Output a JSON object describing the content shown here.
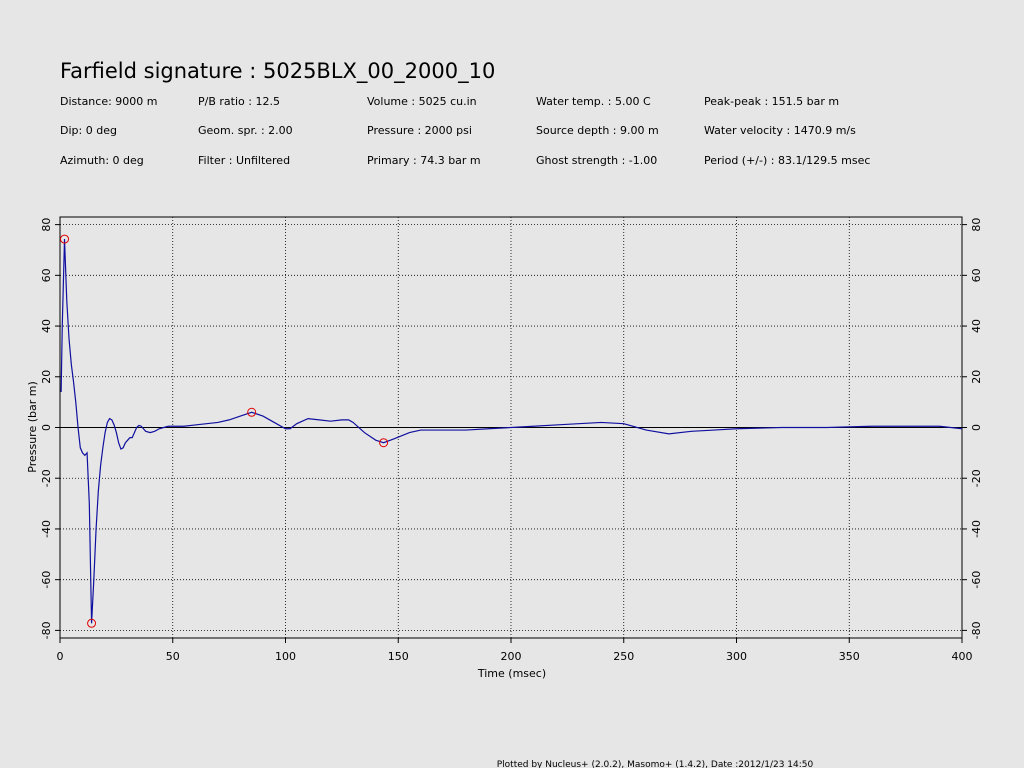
{
  "chart_data": {
    "type": "line",
    "title": "Farfield signature : 5025BLX_00_2000_10",
    "annotations": [
      "Distance: 9000 m",
      "P/B ratio : 12.5",
      "Volume : 5025 cu.in",
      "Water temp. : 5.00 C",
      "Peak-peak : 151.5 bar m",
      "Dip: 0 deg",
      "Geom. spr. : 2.00",
      "Pressure : 2000 psi",
      "Source depth : 9.00 m",
      "Water velocity : 1470.9 m/s",
      "Azimuth: 0 deg",
      "Filter : Unfiltered",
      "Primary : 74.3 bar m",
      "Ghost strength : -1.00",
      "Period (+/-) : 83.1/129.5 msec"
    ],
    "x_label": "Time (msec)",
    "y_label": "Pressure (bar m)",
    "footnote": "Plotted by Nucleus+ (2.0.2), Masomo+ (1.4.2), Date :2012/1/23 14:50",
    "xlim": [
      0,
      400
    ],
    "xticks": [
      0,
      50,
      100,
      150,
      200,
      250,
      300,
      350,
      400
    ],
    "ylim": [
      -83,
      83
    ],
    "yticks": [
      -80,
      -60,
      -40,
      -20,
      0,
      20,
      40,
      60,
      80
    ],
    "grid": true,
    "series": [
      {
        "color": "#1010a0",
        "x": [
          0.5,
          1,
          2,
          3,
          4,
          5,
          6,
          7,
          8,
          9,
          10,
          11,
          12,
          13,
          14,
          15,
          16,
          17,
          18,
          19,
          20,
          21,
          22,
          23,
          24,
          25,
          26,
          27,
          28,
          29,
          30,
          31,
          32,
          33,
          34,
          35,
          36,
          37,
          38,
          40,
          42,
          44,
          46,
          48,
          50,
          55,
          60,
          65,
          70,
          75,
          80,
          85,
          90,
          95,
          100,
          102,
          105,
          110,
          115,
          120,
          125,
          128,
          130,
          135,
          140,
          143.5,
          148,
          155,
          160,
          170,
          180,
          190,
          200,
          210,
          220,
          230,
          240,
          250,
          260,
          270,
          280,
          290,
          300,
          320,
          340,
          360,
          380,
          390,
          400
        ],
        "values": [
          14,
          40,
          74.3,
          50,
          35,
          25,
          18,
          10,
          0,
          -8,
          -10,
          -11,
          -10,
          -30,
          -77.2,
          -60,
          -40,
          -25,
          -15,
          -8,
          -2,
          2,
          3.5,
          3,
          1,
          -2,
          -6,
          -8.5,
          -8,
          -6,
          -5,
          -4,
          -4,
          -2,
          0,
          0.8,
          0.5,
          -0.5,
          -1.5,
          -2,
          -1.5,
          -0.5,
          0,
          0.5,
          0.5,
          0.5,
          1,
          1.5,
          2,
          3,
          4.5,
          6,
          4.5,
          2,
          -0.5,
          -0.5,
          1.5,
          3.5,
          3,
          2.5,
          3,
          3,
          2,
          -2,
          -5,
          -6,
          -4.5,
          -2,
          -1,
          -1,
          -1,
          -0.5,
          0,
          0.5,
          1,
          1.5,
          2,
          1.5,
          -1,
          -2.5,
          -1.5,
          -1,
          -0.5,
          0,
          0,
          0.5,
          0.5,
          0.5,
          -0.5
        ]
      }
    ],
    "peaks": {
      "color": "#e00000",
      "x": [
        2,
        14,
        85,
        143.5
      ],
      "values": [
        74.3,
        -77.2,
        6,
        -6
      ]
    }
  }
}
